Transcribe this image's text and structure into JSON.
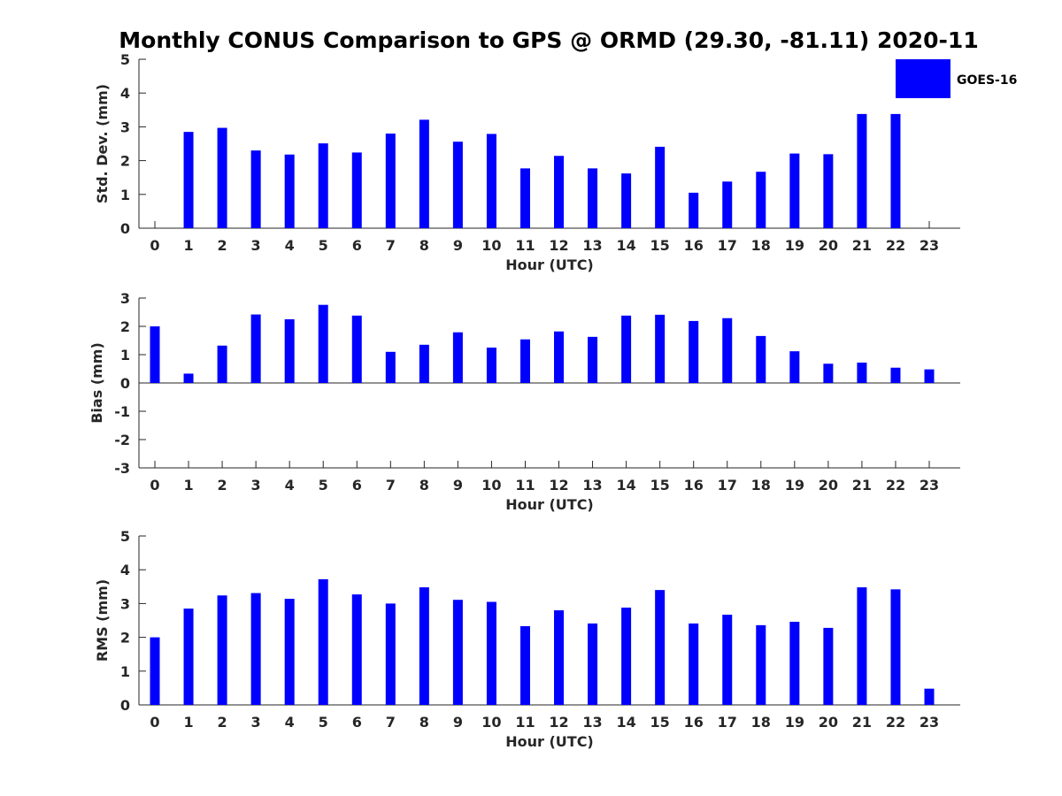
{
  "figure_title": "Monthly CONUS Comparison to GPS @ ORMD (29.30, -81.11) 2020-11",
  "legend": {
    "label": "GOES-16",
    "color": "#0000ff"
  },
  "chart_data": [
    {
      "type": "bar",
      "name": "std-dev",
      "title": "Monthly CONUS Comparison to GPS @ ORMD (29.30, -81.11) 2020-11",
      "xlabel": "Hour (UTC)",
      "ylabel": "Std. Dev. (mm)",
      "ylim": [
        0,
        5
      ],
      "yticks": [
        "0",
        "1",
        "2",
        "3",
        "4",
        "5"
      ],
      "categories": [
        "0",
        "1",
        "2",
        "3",
        "4",
        "5",
        "6",
        "7",
        "8",
        "9",
        "10",
        "11",
        "12",
        "13",
        "14",
        "15",
        "16",
        "17",
        "18",
        "19",
        "20",
        "21",
        "22",
        "23"
      ],
      "series": [
        {
          "name": "GOES-16",
          "color": "#0000ff",
          "values": [
            0,
            2.85,
            2.97,
            2.3,
            2.18,
            2.51,
            2.24,
            2.8,
            3.21,
            2.56,
            2.79,
            1.77,
            2.14,
            1.77,
            1.62,
            2.41,
            1.05,
            1.38,
            1.67,
            2.21,
            2.19,
            3.38,
            3.38,
            0
          ]
        }
      ]
    },
    {
      "type": "bar",
      "name": "bias",
      "xlabel": "Hour (UTC)",
      "ylabel": "Bias (mm)",
      "ylim": [
        -3,
        3
      ],
      "yticks": [
        "-3",
        "-2",
        "-1",
        "0",
        "1",
        "2",
        "3"
      ],
      "categories": [
        "0",
        "1",
        "2",
        "3",
        "4",
        "5",
        "6",
        "7",
        "8",
        "9",
        "10",
        "11",
        "12",
        "13",
        "14",
        "15",
        "16",
        "17",
        "18",
        "19",
        "20",
        "21",
        "22",
        "23"
      ],
      "series": [
        {
          "name": "GOES-16",
          "color": "#0000ff",
          "values": [
            2.0,
            0.33,
            1.32,
            2.42,
            2.25,
            2.76,
            2.38,
            1.1,
            1.35,
            1.79,
            1.25,
            1.54,
            1.82,
            1.63,
            2.38,
            2.41,
            2.19,
            2.29,
            1.66,
            1.12,
            0.68,
            0.72,
            0.54,
            0.48
          ]
        }
      ]
    },
    {
      "type": "bar",
      "name": "rms",
      "xlabel": "Hour (UTC)",
      "ylabel": "RMS (mm)",
      "ylim": [
        0,
        5
      ],
      "yticks": [
        "0",
        "1",
        "2",
        "3",
        "4",
        "5"
      ],
      "categories": [
        "0",
        "1",
        "2",
        "3",
        "4",
        "5",
        "6",
        "7",
        "8",
        "9",
        "10",
        "11",
        "12",
        "13",
        "14",
        "15",
        "16",
        "17",
        "18",
        "19",
        "20",
        "21",
        "22",
        "23"
      ],
      "series": [
        {
          "name": "GOES-16",
          "color": "#0000ff",
          "values": [
            2.0,
            2.85,
            3.24,
            3.31,
            3.14,
            3.72,
            3.27,
            3.0,
            3.48,
            3.11,
            3.05,
            2.33,
            2.8,
            2.41,
            2.88,
            3.4,
            2.41,
            2.67,
            2.36,
            2.46,
            2.28,
            3.48,
            3.42,
            0.48
          ]
        }
      ]
    }
  ]
}
